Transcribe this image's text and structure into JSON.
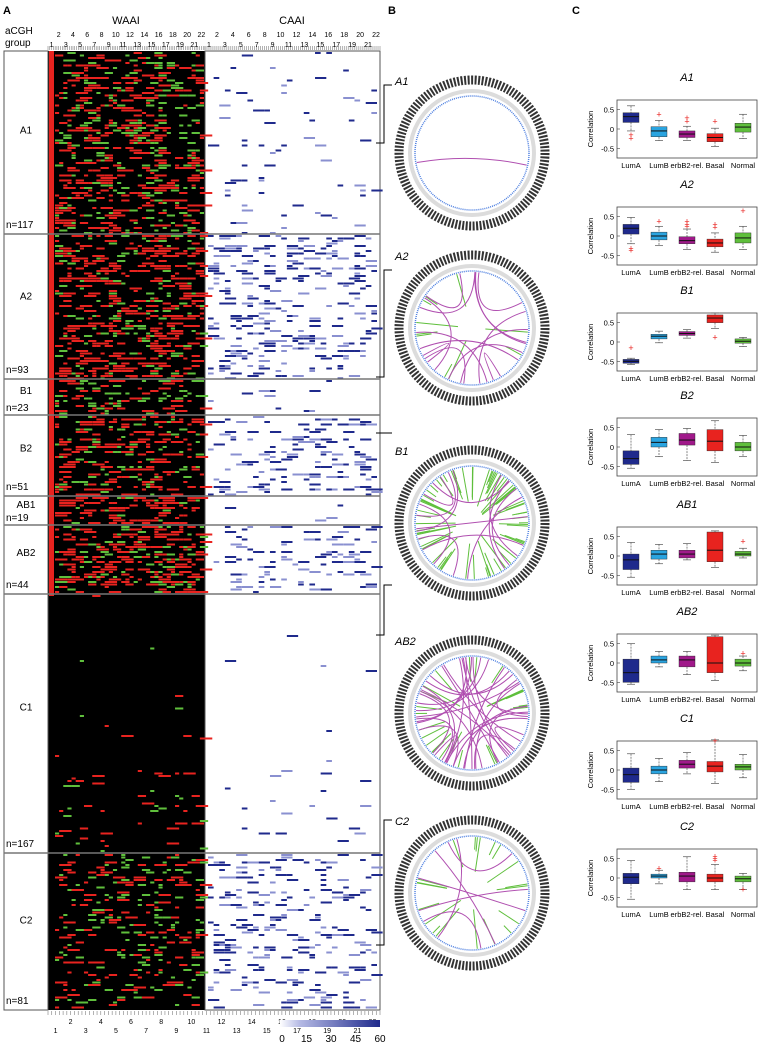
{
  "panel_labels": {
    "a": "A",
    "b": "B",
    "c": "C"
  },
  "heatmap": {
    "row_header": [
      "aCGH",
      "group"
    ],
    "waai_title": "WAAI",
    "caai_title": "CAAI",
    "chrom_top_even": [
      "2",
      "4",
      "6",
      "8",
      "10",
      "12",
      "14",
      "16",
      "18",
      "20",
      "22"
    ],
    "chrom_top_odd": [
      "1",
      "3",
      "5",
      "7",
      "9",
      "11",
      "13",
      "15",
      "17",
      "19",
      "21"
    ],
    "chrom_caai_even": [
      "2",
      "4",
      "6",
      "8",
      "10",
      "12",
      "14",
      "16",
      "18",
      "20",
      "22"
    ],
    "chrom_caai_odd": [
      "1",
      "3",
      "5",
      "7",
      "9",
      "11",
      "13",
      "15",
      "17",
      "19",
      "21"
    ],
    "chrom_bottom_even": [
      "2",
      "4",
      "6",
      "8",
      "10",
      "12",
      "14",
      "16",
      "18",
      "20",
      "22"
    ],
    "chrom_bottom_odd": [
      "1",
      "3",
      "5",
      "7",
      "9",
      "11",
      "13",
      "15",
      "17",
      "19",
      "21"
    ],
    "groups": [
      {
        "name": "A1",
        "n": "n=117"
      },
      {
        "name": "A2",
        "n": "n=93"
      },
      {
        "name": "B1",
        "n": "n=23"
      },
      {
        "name": "B2",
        "n": "n=51"
      },
      {
        "name": "AB1",
        "n": "n=19"
      },
      {
        "name": "AB2",
        "n": "n=44"
      },
      {
        "name": "C1",
        "n": "n=167"
      },
      {
        "name": "C2",
        "n": "n=81"
      }
    ],
    "colorbar_ticks": [
      "0",
      "15",
      "30",
      "45",
      "60"
    ],
    "colors": {
      "gain": "#e8231f",
      "loss": "#5fbf3c",
      "background": "#000000",
      "caai": "#1f2a8c"
    }
  },
  "circos": {
    "labels": [
      "A1",
      "A2",
      "B1",
      "AB2",
      "C2"
    ]
  },
  "chart_data": [
    {
      "type": "box",
      "title": "A1",
      "ylabel": "Correlation",
      "categories": [
        "LumA",
        "LumB",
        "erbB2-rel.",
        "Basal",
        "Normal"
      ],
      "ylim": [
        -0.75,
        0.75
      ],
      "yticks": [
        "0.5",
        "0",
        "-0.5"
      ],
      "boxes": [
        {
          "q1": 0.17,
          "median": 0.32,
          "q3": 0.42,
          "whislo": -0.05,
          "whishi": 0.6
        },
        {
          "q1": -0.2,
          "median": -0.05,
          "q3": 0.06,
          "whislo": -0.3,
          "whishi": 0.22
        },
        {
          "q1": -0.22,
          "median": -0.13,
          "q3": -0.05,
          "whislo": -0.3,
          "whishi": 0.07
        },
        {
          "q1": -0.33,
          "median": -0.22,
          "q3": -0.12,
          "whislo": -0.45,
          "whishi": 0.02
        },
        {
          "q1": -0.08,
          "median": 0.05,
          "q3": 0.15,
          "whislo": -0.25,
          "whishi": 0.38
        }
      ],
      "outliers": [
        [
          0,
          -0.15
        ],
        [
          0,
          -0.25
        ],
        [
          1,
          0.38
        ],
        [
          2,
          0.2
        ],
        [
          2,
          0.28
        ],
        [
          3,
          0.2
        ]
      ]
    },
    {
      "type": "box",
      "title": "A2",
      "ylabel": "Correlation",
      "categories": [
        "LumA",
        "LumB",
        "erbB2-rel.",
        "Basal",
        "Normal"
      ],
      "ylim": [
        -0.75,
        0.75
      ],
      "yticks": [
        "0.5",
        "0",
        "-0.5"
      ],
      "boxes": [
        {
          "q1": 0.05,
          "median": 0.2,
          "q3": 0.3,
          "whislo": -0.2,
          "whishi": 0.48
        },
        {
          "q1": -0.1,
          "median": 0.0,
          "q3": 0.1,
          "whislo": -0.25,
          "whishi": 0.25
        },
        {
          "q1": -0.2,
          "median": -0.12,
          "q3": -0.02,
          "whislo": -0.35,
          "whishi": 0.18
        },
        {
          "q1": -0.28,
          "median": -0.18,
          "q3": -0.08,
          "whislo": -0.42,
          "whishi": 0.08
        },
        {
          "q1": -0.18,
          "median": -0.05,
          "q3": 0.08,
          "whislo": -0.35,
          "whishi": 0.25
        }
      ],
      "outliers": [
        [
          0,
          -0.32
        ],
        [
          0,
          -0.38
        ],
        [
          1,
          0.38
        ],
        [
          2,
          0.3
        ],
        [
          2,
          0.38
        ],
        [
          2,
          0.25
        ],
        [
          3,
          0.22
        ],
        [
          3,
          0.3
        ],
        [
          4,
          0.65
        ]
      ]
    },
    {
      "type": "box",
      "title": "B1",
      "ylabel": "Correlation",
      "categories": [
        "LumA",
        "LumB",
        "erbB2-rel.",
        "Basal",
        "Normal"
      ],
      "ylim": [
        -0.75,
        0.75
      ],
      "yticks": [
        "0.5",
        "0",
        "-0.5"
      ],
      "boxes": [
        {
          "q1": -0.55,
          "median": -0.5,
          "q3": -0.45,
          "whislo": -0.58,
          "whishi": -0.42
        },
        {
          "q1": 0.08,
          "median": 0.15,
          "q3": 0.2,
          "whislo": -0.02,
          "whishi": 0.28
        },
        {
          "q1": 0.17,
          "median": 0.22,
          "q3": 0.27,
          "whislo": 0.1,
          "whishi": 0.32
        },
        {
          "q1": 0.5,
          "median": 0.62,
          "q3": 0.7,
          "whislo": 0.35,
          "whishi": 0.75
        },
        {
          "q1": -0.03,
          "median": 0.02,
          "q3": 0.08,
          "whislo": -0.12,
          "whishi": 0.12
        }
      ],
      "outliers": [
        [
          0,
          -0.15
        ],
        [
          3,
          0.12
        ]
      ]
    },
    {
      "type": "box",
      "title": "B2",
      "ylabel": "Correlation",
      "categories": [
        "LumA",
        "LumB",
        "erbB2-rel.",
        "Basal",
        "Normal"
      ],
      "ylim": [
        -0.75,
        0.75
      ],
      "yticks": [
        "0.5",
        "0",
        "-0.5"
      ],
      "boxes": [
        {
          "q1": -0.45,
          "median": -0.3,
          "q3": -0.1,
          "whislo": -0.55,
          "whishi": 0.32
        },
        {
          "q1": 0.0,
          "median": 0.12,
          "q3": 0.25,
          "whislo": -0.25,
          "whishi": 0.45
        },
        {
          "q1": 0.05,
          "median": 0.18,
          "q3": 0.35,
          "whislo": -0.35,
          "whishi": 0.48
        },
        {
          "q1": -0.1,
          "median": 0.15,
          "q3": 0.45,
          "whislo": -0.4,
          "whishi": 0.68
        },
        {
          "q1": -0.1,
          "median": 0.0,
          "q3": 0.12,
          "whislo": -0.25,
          "whishi": 0.3
        }
      ],
      "outliers": []
    },
    {
      "type": "box",
      "title": "AB1",
      "ylabel": "Correlation",
      "categories": [
        "LumA",
        "LumB",
        "erbB2-rel.",
        "Basal",
        "Normal"
      ],
      "ylim": [
        -0.75,
        0.75
      ],
      "yticks": [
        "0.5",
        "0",
        "-0.5"
      ],
      "boxes": [
        {
          "q1": -0.35,
          "median": -0.1,
          "q3": 0.05,
          "whislo": -0.55,
          "whishi": 0.35
        },
        {
          "q1": -0.08,
          "median": 0.05,
          "q3": 0.15,
          "whislo": -0.2,
          "whishi": 0.3
        },
        {
          "q1": -0.05,
          "median": 0.05,
          "q3": 0.15,
          "whislo": -0.1,
          "whishi": 0.32
        },
        {
          "q1": -0.15,
          "median": 0.15,
          "q3": 0.62,
          "whislo": -0.3,
          "whishi": 0.65
        },
        {
          "q1": 0.0,
          "median": 0.05,
          "q3": 0.12,
          "whislo": -0.05,
          "whishi": 0.2
        }
      ],
      "outliers": [
        [
          4,
          0.38
        ]
      ]
    },
    {
      "type": "box",
      "title": "AB2",
      "ylabel": "Correlation",
      "categories": [
        "LumA",
        "LumB",
        "erbB2-rel.",
        "Basal",
        "Normal"
      ],
      "ylim": [
        -0.75,
        0.75
      ],
      "yticks": [
        "0.5",
        "0",
        "-0.5"
      ],
      "boxes": [
        {
          "q1": -0.5,
          "median": -0.25,
          "q3": 0.1,
          "whislo": -0.55,
          "whishi": 0.5
        },
        {
          "q1": 0.0,
          "median": 0.08,
          "q3": 0.18,
          "whislo": -0.1,
          "whishi": 0.3
        },
        {
          "q1": -0.1,
          "median": 0.08,
          "q3": 0.18,
          "whislo": -0.3,
          "whishi": 0.3
        },
        {
          "q1": -0.25,
          "median": 0.0,
          "q3": 0.68,
          "whislo": -0.45,
          "whishi": 0.72
        },
        {
          "q1": -0.08,
          "median": 0.0,
          "q3": 0.1,
          "whislo": -0.2,
          "whishi": 0.18
        }
      ],
      "outliers": [
        [
          4,
          0.25
        ]
      ]
    },
    {
      "type": "box",
      "title": "C1",
      "ylabel": "Correlation",
      "categories": [
        "LumA",
        "LumB",
        "erbB2-rel.",
        "Basal",
        "Normal"
      ],
      "ylim": [
        -0.75,
        0.75
      ],
      "yticks": [
        "0.5",
        "0",
        "-0.5"
      ],
      "boxes": [
        {
          "q1": -0.32,
          "median": -0.12,
          "q3": 0.05,
          "whislo": -0.5,
          "whishi": 0.42
        },
        {
          "q1": -0.1,
          "median": 0.0,
          "q3": 0.1,
          "whislo": -0.3,
          "whishi": 0.3
        },
        {
          "q1": 0.05,
          "median": 0.15,
          "q3": 0.25,
          "whislo": -0.1,
          "whishi": 0.45
        },
        {
          "q1": -0.05,
          "median": 0.1,
          "q3": 0.22,
          "whislo": -0.35,
          "whishi": 0.78
        },
        {
          "q1": 0.0,
          "median": 0.08,
          "q3": 0.15,
          "whislo": -0.2,
          "whishi": 0.4
        }
      ],
      "outliers": [
        [
          3,
          0.75
        ]
      ]
    },
    {
      "type": "box",
      "title": "C2",
      "ylabel": "Correlation",
      "categories": [
        "LumA",
        "LumB",
        "erbB2-rel.",
        "Basal",
        "Normal"
      ],
      "ylim": [
        -0.75,
        0.75
      ],
      "yticks": [
        "0.5",
        "0",
        "-0.5"
      ],
      "boxes": [
        {
          "q1": -0.15,
          "median": 0.02,
          "q3": 0.12,
          "whislo": -0.55,
          "whishi": 0.45
        },
        {
          "q1": 0.0,
          "median": 0.05,
          "q3": 0.1,
          "whislo": -0.15,
          "whishi": 0.2
        },
        {
          "q1": -0.1,
          "median": 0.05,
          "q3": 0.15,
          "whislo": -0.3,
          "whishi": 0.55
        },
        {
          "q1": -0.1,
          "median": 0.0,
          "q3": 0.1,
          "whislo": -0.3,
          "whishi": 0.35
        },
        {
          "q1": -0.1,
          "median": -0.02,
          "q3": 0.05,
          "whislo": -0.3,
          "whishi": 0.12
        }
      ],
      "outliers": [
        [
          1,
          0.25
        ],
        [
          3,
          0.45
        ],
        [
          3,
          0.55
        ],
        [
          3,
          0.5
        ],
        [
          4,
          -0.3
        ]
      ]
    }
  ],
  "box_colors": [
    "#1f2a8c",
    "#2aa4e0",
    "#a0198a",
    "#e8231f",
    "#5fbf3c"
  ]
}
